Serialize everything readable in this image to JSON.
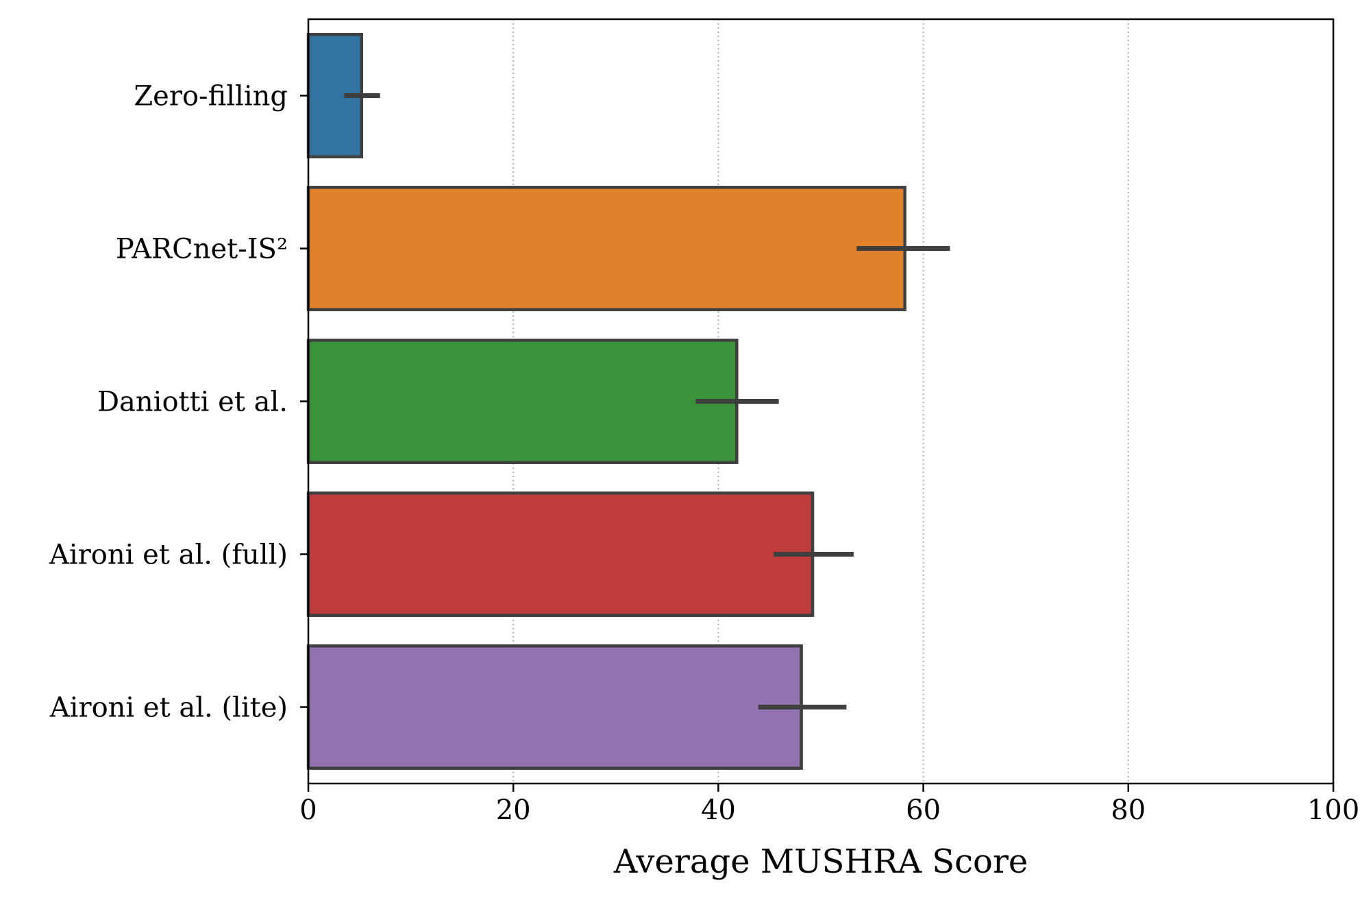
{
  "chart_data": {
    "type": "bar",
    "orientation": "horizontal",
    "categories": [
      "Zero-filling",
      "PARCnet-IS²",
      "Daniotti et al.",
      "Aironi et al. (full)",
      "Aironi et al. (lite)"
    ],
    "series": [
      {
        "values": [
          5.2,
          58.2,
          41.8,
          49.2,
          48.1
        ],
        "ci_low": [
          3.5,
          53.5,
          37.8,
          45.4,
          43.9
        ],
        "ci_high": [
          7.0,
          62.6,
          45.9,
          53.2,
          52.5
        ]
      }
    ],
    "colors": [
      "#3274a1",
      "#e1812c",
      "#3a923a",
      "#c03d3e",
      "#9372b2"
    ],
    "xlabel": "Average MUSHRA Score",
    "ylabel": "",
    "xlim": [
      0,
      100
    ],
    "xticks": [
      0,
      20,
      40,
      60,
      80,
      100
    ],
    "grid": "x-dotted",
    "edge_color": "#3f3f3f"
  }
}
